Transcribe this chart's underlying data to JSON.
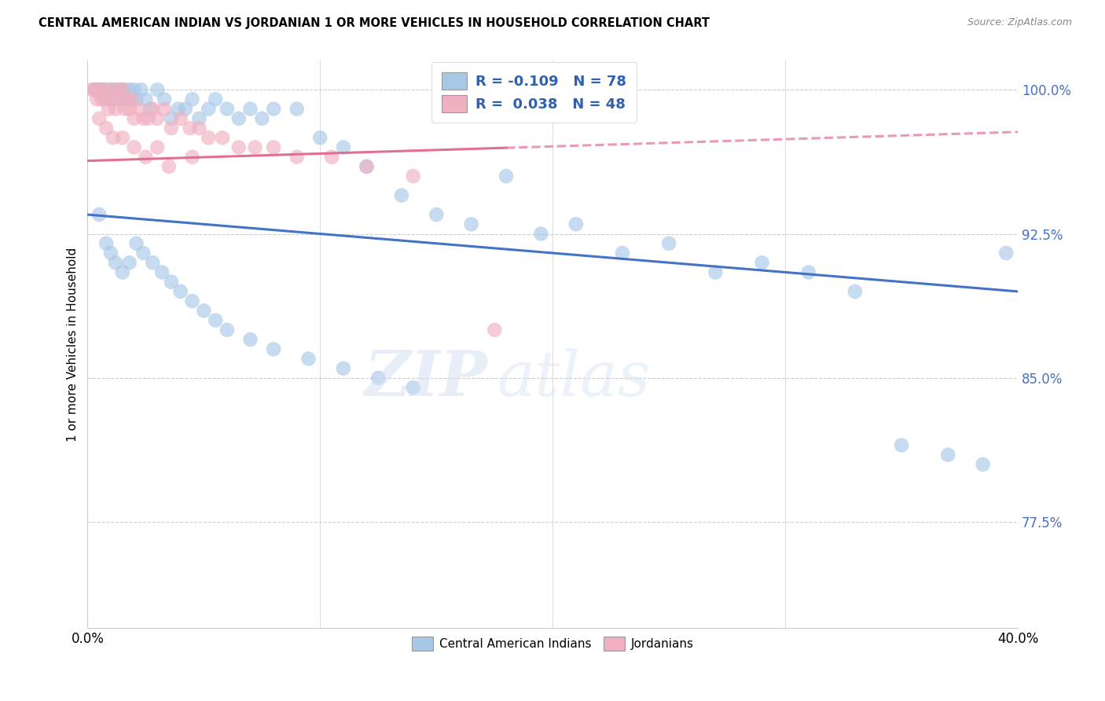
{
  "title": "CENTRAL AMERICAN INDIAN VS JORDANIAN 1 OR MORE VEHICLES IN HOUSEHOLD CORRELATION CHART",
  "source": "Source: ZipAtlas.com",
  "ylabel": "1 or more Vehicles in Household",
  "yticks": [
    100.0,
    92.5,
    85.0,
    77.5
  ],
  "ytick_labels": [
    "100.0%",
    "92.5%",
    "85.0%",
    "77.5%"
  ],
  "xmin": 0.0,
  "xmax": 40.0,
  "ymin": 72.0,
  "ymax": 101.5,
  "blue_R": "-0.109",
  "blue_N": "78",
  "pink_R": "0.038",
  "pink_N": "48",
  "blue_color": "#a8c8e8",
  "pink_color": "#f0b0c0",
  "blue_line_color": "#4472c4",
  "pink_line_color": "#e07090",
  "legend_label_blue": "Central American Indians",
  "legend_label_pink": "Jordanians",
  "watermark_zip": "ZIP",
  "watermark_atlas": "atlas",
  "blue_scatter_x": [
    0.3,
    0.4,
    0.5,
    0.6,
    0.7,
    0.8,
    0.9,
    1.0,
    1.1,
    1.2,
    1.3,
    1.4,
    1.5,
    1.6,
    1.7,
    1.8,
    1.9,
    2.0,
    2.1,
    2.3,
    2.5,
    2.7,
    3.0,
    3.3,
    3.6,
    3.9,
    4.2,
    4.5,
    4.8,
    5.2,
    5.5,
    6.0,
    6.5,
    7.0,
    7.5,
    8.0,
    9.0,
    10.0,
    11.0,
    12.0,
    13.5,
    15.0,
    16.5,
    18.0,
    19.5,
    21.0,
    23.0,
    25.0,
    27.0,
    29.0,
    31.0,
    33.0,
    35.0,
    37.0,
    38.5,
    0.5,
    0.8,
    1.0,
    1.2,
    1.5,
    1.8,
    2.1,
    2.4,
    2.8,
    3.2,
    3.6,
    4.0,
    4.5,
    5.0,
    5.5,
    6.0,
    7.0,
    8.0,
    9.5,
    11.0,
    12.5,
    14.0,
    39.5
  ],
  "blue_scatter_y": [
    100.0,
    100.0,
    100.0,
    100.0,
    99.5,
    100.0,
    99.5,
    100.0,
    100.0,
    99.5,
    100.0,
    99.5,
    100.0,
    100.0,
    99.5,
    100.0,
    99.5,
    100.0,
    99.5,
    100.0,
    99.5,
    99.0,
    100.0,
    99.5,
    98.5,
    99.0,
    99.0,
    99.5,
    98.5,
    99.0,
    99.5,
    99.0,
    98.5,
    99.0,
    98.5,
    99.0,
    99.0,
    97.5,
    97.0,
    96.0,
    94.5,
    93.5,
    93.0,
    95.5,
    92.5,
    93.0,
    91.5,
    92.0,
    90.5,
    91.0,
    90.5,
    89.5,
    81.5,
    81.0,
    80.5,
    93.5,
    92.0,
    91.5,
    91.0,
    90.5,
    91.0,
    92.0,
    91.5,
    91.0,
    90.5,
    90.0,
    89.5,
    89.0,
    88.5,
    88.0,
    87.5,
    87.0,
    86.5,
    86.0,
    85.5,
    85.0,
    84.5,
    91.5
  ],
  "pink_scatter_x": [
    0.2,
    0.3,
    0.4,
    0.5,
    0.6,
    0.7,
    0.8,
    0.9,
    1.0,
    1.1,
    1.2,
    1.3,
    1.4,
    1.5,
    1.6,
    1.7,
    1.8,
    1.9,
    2.0,
    2.2,
    2.4,
    2.6,
    2.8,
    3.0,
    3.3,
    3.6,
    4.0,
    4.4,
    4.8,
    5.2,
    5.8,
    6.5,
    7.2,
    8.0,
    9.0,
    10.5,
    12.0,
    14.0,
    0.5,
    0.8,
    1.1,
    1.5,
    2.0,
    2.5,
    3.0,
    3.5,
    4.5,
    17.5
  ],
  "pink_scatter_y": [
    100.0,
    100.0,
    99.5,
    100.0,
    99.5,
    100.0,
    99.5,
    99.0,
    100.0,
    99.5,
    99.0,
    100.0,
    99.5,
    100.0,
    99.0,
    99.5,
    99.0,
    99.5,
    98.5,
    99.0,
    98.5,
    98.5,
    99.0,
    98.5,
    99.0,
    98.0,
    98.5,
    98.0,
    98.0,
    97.5,
    97.5,
    97.0,
    97.0,
    97.0,
    96.5,
    96.5,
    96.0,
    95.5,
    98.5,
    98.0,
    97.5,
    97.5,
    97.0,
    96.5,
    97.0,
    96.0,
    96.5,
    87.5
  ],
  "pink_solid_end": 18.0
}
